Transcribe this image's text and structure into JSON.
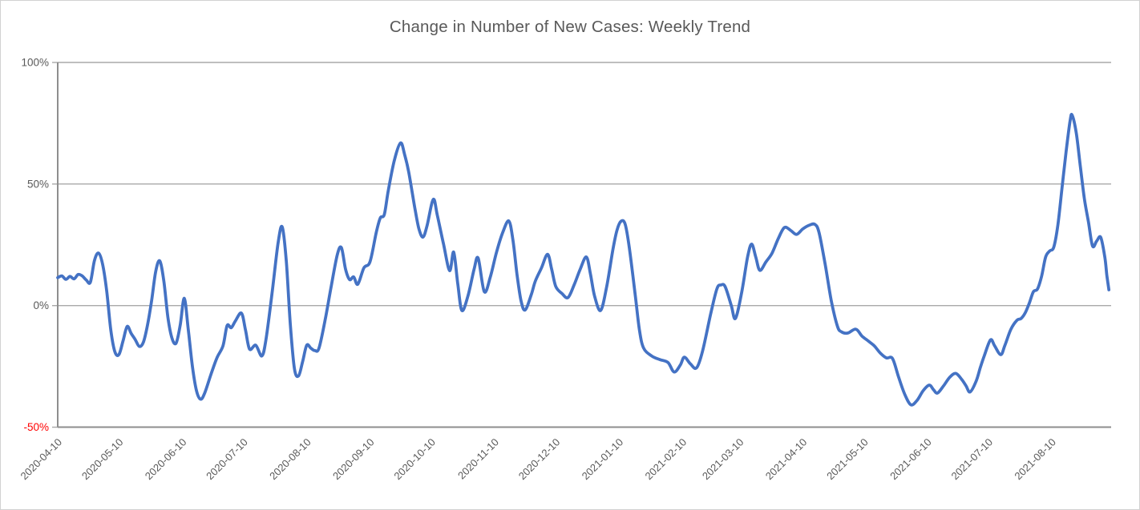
{
  "chart_data": {
    "type": "line",
    "title": "Change in Number of New Cases: Weekly Trend",
    "title_color": "#595959",
    "grid": "horizontal only",
    "gridline_color": "#a9a9a9",
    "axis_line_color": "#8e8e8e",
    "background": "#ffffff",
    "x_axis": {
      "start_date": "2020-04-10",
      "end_date": "2021-09-07",
      "tick_interval": "1 month",
      "label_rotation_deg": 45,
      "label_color": "#595959",
      "tick_labels": [
        "2020-04-10",
        "2020-05-10",
        "2020-06-10",
        "2020-07-10",
        "2020-08-10",
        "2020-09-10",
        "2020-10-10",
        "2020-11-10",
        "2020-12-10",
        "2021-01-10",
        "2021-02-10",
        "2021-03-10",
        "2021-04-10",
        "2021-05-10",
        "2021-06-10",
        "2021-07-10",
        "2021-08-10"
      ]
    },
    "y_axis": {
      "min": -50,
      "max": 100,
      "unit": "%",
      "tick_values": [
        100,
        50,
        0,
        -50
      ],
      "tick_labels": [
        "100%",
        "50%",
        "0%",
        "-50%"
      ],
      "label_color": "#595959",
      "negative_label_color": "#ff0000"
    },
    "legend": "none",
    "series": [
      {
        "color": "#4472C4",
        "stroke_width": 3.75,
        "points": [
          [
            "2020-04-10",
            11.5
          ],
          [
            "2020-04-12",
            12.2
          ],
          [
            "2020-04-14",
            10.8
          ],
          [
            "2020-04-16",
            12.0
          ],
          [
            "2020-04-18",
            11.0
          ],
          [
            "2020-04-20",
            12.8
          ],
          [
            "2020-04-22",
            12.2
          ],
          [
            "2020-04-24",
            10.5
          ],
          [
            "2020-04-26",
            9.6
          ],
          [
            "2020-04-28",
            18.5
          ],
          [
            "2020-04-30",
            21.6
          ],
          [
            "2020-05-02",
            17.0
          ],
          [
            "2020-05-04",
            6.0
          ],
          [
            "2020-05-06",
            -10.0
          ],
          [
            "2020-05-08",
            -19.0
          ],
          [
            "2020-05-10",
            -20.1
          ],
          [
            "2020-05-12",
            -14.5
          ],
          [
            "2020-05-14",
            -8.6
          ],
          [
            "2020-05-16",
            -11.5
          ],
          [
            "2020-05-18",
            -14.0
          ],
          [
            "2020-05-20",
            -16.8
          ],
          [
            "2020-05-22",
            -15.0
          ],
          [
            "2020-05-24",
            -8.0
          ],
          [
            "2020-05-26",
            2.0
          ],
          [
            "2020-05-28",
            14.0
          ],
          [
            "2020-05-30",
            18.4
          ],
          [
            "2020-06-01",
            10.0
          ],
          [
            "2020-06-03",
            -5.0
          ],
          [
            "2020-06-05",
            -13.5
          ],
          [
            "2020-06-07",
            -15.4
          ],
          [
            "2020-06-09",
            -8.0
          ],
          [
            "2020-06-11",
            3.0
          ],
          [
            "2020-06-13",
            -10.0
          ],
          [
            "2020-06-15",
            -25.0
          ],
          [
            "2020-06-17",
            -35.0
          ],
          [
            "2020-06-19",
            -38.5
          ],
          [
            "2020-06-21",
            -36.0
          ],
          [
            "2020-06-24",
            -28.5
          ],
          [
            "2020-06-27",
            -21.5
          ],
          [
            "2020-06-30",
            -16.5
          ],
          [
            "2020-07-02",
            -8.2
          ],
          [
            "2020-07-04",
            -9.1
          ],
          [
            "2020-07-06",
            -6.4
          ],
          [
            "2020-07-09",
            -3.1
          ],
          [
            "2020-07-11",
            -10.0
          ],
          [
            "2020-07-13",
            -17.9
          ],
          [
            "2020-07-16",
            -16.3
          ],
          [
            "2020-07-19",
            -20.7
          ],
          [
            "2020-07-21",
            -14.1
          ],
          [
            "2020-07-24",
            5.0
          ],
          [
            "2020-07-27",
            26.0
          ],
          [
            "2020-07-29",
            32.3
          ],
          [
            "2020-07-31",
            18.0
          ],
          [
            "2020-08-02",
            -8.0
          ],
          [
            "2020-08-04",
            -26.0
          ],
          [
            "2020-08-06",
            -28.9
          ],
          [
            "2020-08-08",
            -23.0
          ],
          [
            "2020-08-10",
            -16.3
          ],
          [
            "2020-08-12",
            -17.5
          ],
          [
            "2020-08-14",
            -18.5
          ],
          [
            "2020-08-16",
            -17.5
          ],
          [
            "2020-08-19",
            -6.0
          ],
          [
            "2020-08-22",
            8.0
          ],
          [
            "2020-08-25",
            21.0
          ],
          [
            "2020-08-27",
            23.8
          ],
          [
            "2020-08-29",
            15.0
          ],
          [
            "2020-08-31",
            10.7
          ],
          [
            "2020-09-02",
            11.8
          ],
          [
            "2020-09-04",
            8.8
          ],
          [
            "2020-09-07",
            15.5
          ],
          [
            "2020-09-10",
            18.0
          ],
          [
            "2020-09-13",
            29.9
          ],
          [
            "2020-09-15",
            36.0
          ],
          [
            "2020-09-17",
            37.5
          ],
          [
            "2020-09-19",
            47.6
          ],
          [
            "2020-09-22",
            60.0
          ],
          [
            "2020-09-25",
            66.9
          ],
          [
            "2020-09-27",
            62.0
          ],
          [
            "2020-09-29",
            54.8
          ],
          [
            "2020-10-02",
            40.0
          ],
          [
            "2020-10-04",
            31.5
          ],
          [
            "2020-10-06",
            28.2
          ],
          [
            "2020-10-08",
            33.0
          ],
          [
            "2020-10-11",
            43.7
          ],
          [
            "2020-10-13",
            37.0
          ],
          [
            "2020-10-16",
            25.4
          ],
          [
            "2020-10-19",
            14.4
          ],
          [
            "2020-10-21",
            22.0
          ],
          [
            "2020-10-23",
            9.0
          ],
          [
            "2020-10-25",
            -2.0
          ],
          [
            "2020-10-28",
            4.0
          ],
          [
            "2020-10-31",
            15.0
          ],
          [
            "2020-11-02",
            19.5
          ],
          [
            "2020-11-05",
            5.7
          ],
          [
            "2020-11-08",
            12.0
          ],
          [
            "2020-11-11",
            22.0
          ],
          [
            "2020-11-14",
            30.0
          ],
          [
            "2020-11-17",
            34.8
          ],
          [
            "2020-11-19",
            27.0
          ],
          [
            "2020-11-21",
            13.0
          ],
          [
            "2020-11-23",
            2.0
          ],
          [
            "2020-11-25",
            -1.8
          ],
          [
            "2020-11-28",
            4.5
          ],
          [
            "2020-11-30",
            10.1
          ],
          [
            "2020-12-03",
            15.5
          ],
          [
            "2020-12-06",
            21.1
          ],
          [
            "2020-12-08",
            15.0
          ],
          [
            "2020-12-10",
            7.9
          ],
          [
            "2020-12-13",
            5.0
          ],
          [
            "2020-12-16",
            3.3
          ],
          [
            "2020-12-19",
            8.5
          ],
          [
            "2020-12-22",
            15.0
          ],
          [
            "2020-12-25",
            20.0
          ],
          [
            "2020-12-27",
            13.0
          ],
          [
            "2020-12-29",
            4.0
          ],
          [
            "2021-01-01",
            -2.0
          ],
          [
            "2021-01-04",
            8.0
          ],
          [
            "2021-01-07",
            23.0
          ],
          [
            "2021-01-09",
            31.0
          ],
          [
            "2021-01-11",
            34.7
          ],
          [
            "2021-01-13",
            33.5
          ],
          [
            "2021-01-15",
            24.0
          ],
          [
            "2021-01-18",
            4.0
          ],
          [
            "2021-01-20",
            -10.0
          ],
          [
            "2021-01-22",
            -17.4
          ],
          [
            "2021-01-26",
            -20.7
          ],
          [
            "2021-01-30",
            -22.2
          ],
          [
            "2021-02-03",
            -23.4
          ],
          [
            "2021-02-06",
            -27.3
          ],
          [
            "2021-02-09",
            -24.5
          ],
          [
            "2021-02-11",
            -21.2
          ],
          [
            "2021-02-14",
            -24.0
          ],
          [
            "2021-02-17",
            -25.6
          ],
          [
            "2021-02-20",
            -18.5
          ],
          [
            "2021-02-24",
            -3.1
          ],
          [
            "2021-02-27",
            7.0
          ],
          [
            "2021-03-01",
            8.5
          ],
          [
            "2021-03-03",
            7.8
          ],
          [
            "2021-03-06",
            0.0
          ],
          [
            "2021-03-08",
            -5.3
          ],
          [
            "2021-03-11",
            5.0
          ],
          [
            "2021-03-14",
            20.0
          ],
          [
            "2021-03-16",
            25.3
          ],
          [
            "2021-03-18",
            20.0
          ],
          [
            "2021-03-20",
            14.5
          ],
          [
            "2021-03-23",
            18.0
          ],
          [
            "2021-03-26",
            21.6
          ],
          [
            "2021-03-29",
            27.5
          ],
          [
            "2021-04-01",
            32.1
          ],
          [
            "2021-04-04",
            31.0
          ],
          [
            "2021-04-07",
            29.3
          ],
          [
            "2021-04-10",
            31.5
          ],
          [
            "2021-04-13",
            33.0
          ],
          [
            "2021-04-16",
            33.4
          ],
          [
            "2021-04-18",
            30.0
          ],
          [
            "2021-04-21",
            17.0
          ],
          [
            "2021-04-24",
            2.0
          ],
          [
            "2021-04-27",
            -8.5
          ],
          [
            "2021-04-29",
            -10.8
          ],
          [
            "2021-05-02",
            -11.3
          ],
          [
            "2021-05-06",
            -9.7
          ],
          [
            "2021-05-09",
            -12.5
          ],
          [
            "2021-05-12",
            -14.5
          ],
          [
            "2021-05-15",
            -16.5
          ],
          [
            "2021-05-18",
            -19.5
          ],
          [
            "2021-05-21",
            -21.5
          ],
          [
            "2021-05-24",
            -21.8
          ],
          [
            "2021-05-27",
            -29.5
          ],
          [
            "2021-05-30",
            -36.5
          ],
          [
            "2021-06-02",
            -40.8
          ],
          [
            "2021-06-05",
            -39.0
          ],
          [
            "2021-06-08",
            -35.0
          ],
          [
            "2021-06-11",
            -32.7
          ],
          [
            "2021-06-13",
            -34.5
          ],
          [
            "2021-06-15",
            -36.0
          ],
          [
            "2021-06-18",
            -33.0
          ],
          [
            "2021-06-21",
            -29.5
          ],
          [
            "2021-06-24",
            -27.9
          ],
          [
            "2021-06-27",
            -30.5
          ],
          [
            "2021-06-29",
            -33.0
          ],
          [
            "2021-07-01",
            -35.5
          ],
          [
            "2021-07-04",
            -31.0
          ],
          [
            "2021-07-06",
            -25.5
          ],
          [
            "2021-07-08",
            -20.5
          ],
          [
            "2021-07-11",
            -14.1
          ],
          [
            "2021-07-13",
            -16.5
          ],
          [
            "2021-07-16",
            -20.2
          ],
          [
            "2021-07-18",
            -16.5
          ],
          [
            "2021-07-21",
            -9.7
          ],
          [
            "2021-07-24",
            -6.0
          ],
          [
            "2021-07-26",
            -5.3
          ],
          [
            "2021-07-28",
            -3.0
          ],
          [
            "2021-07-30",
            1.0
          ],
          [
            "2021-08-01",
            5.7
          ],
          [
            "2021-08-03",
            6.8
          ],
          [
            "2021-08-05",
            12.0
          ],
          [
            "2021-08-07",
            20.0
          ],
          [
            "2021-08-09",
            22.5
          ],
          [
            "2021-08-11",
            24.0
          ],
          [
            "2021-08-13",
            33.0
          ],
          [
            "2021-08-15",
            48.0
          ],
          [
            "2021-08-17",
            63.0
          ],
          [
            "2021-08-19",
            76.0
          ],
          [
            "2021-08-20",
            78.3
          ],
          [
            "2021-08-22",
            71.0
          ],
          [
            "2021-08-24",
            57.5
          ],
          [
            "2021-08-26",
            44.0
          ],
          [
            "2021-08-28",
            34.4
          ],
          [
            "2021-08-30",
            24.5
          ],
          [
            "2021-09-01",
            26.5
          ],
          [
            "2021-09-03",
            28.1
          ],
          [
            "2021-09-05",
            20.0
          ],
          [
            "2021-09-06",
            12.5
          ],
          [
            "2021-09-07",
            6.5
          ]
        ]
      }
    ]
  }
}
